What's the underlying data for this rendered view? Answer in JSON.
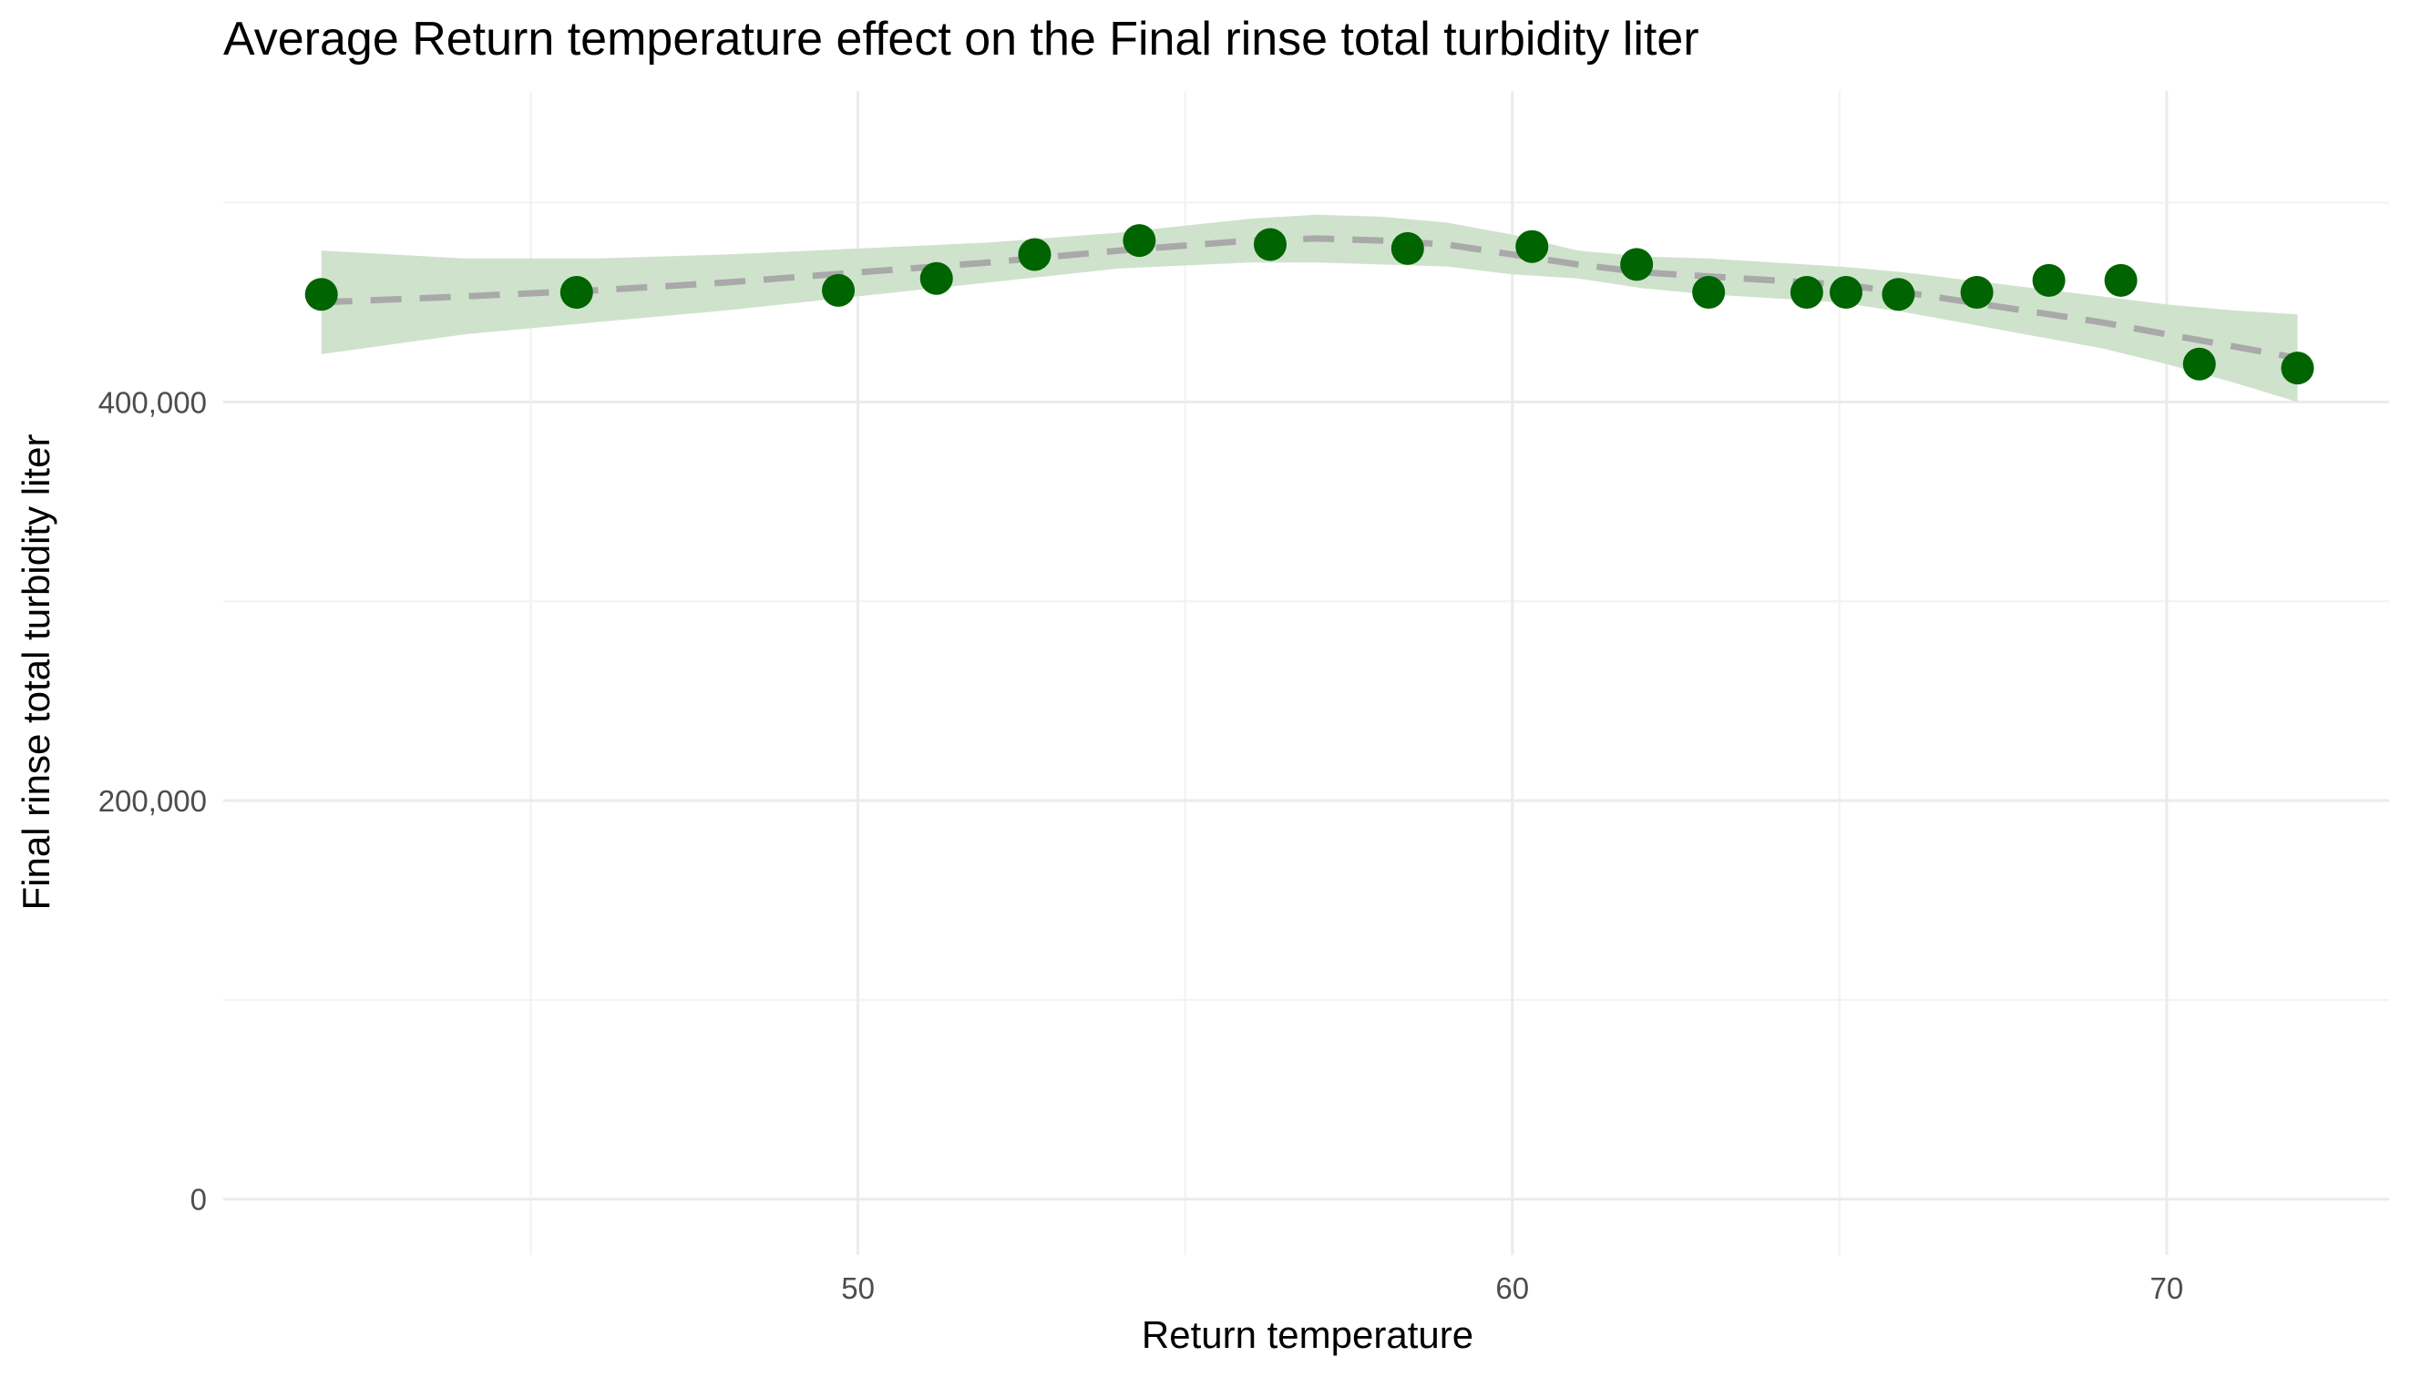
{
  "chart_data": {
    "type": "scatter",
    "title": "Average Return temperature effect on the Final rinse total turbidity liter",
    "xlabel": "Return temperature",
    "ylabel": "Final rinse total turbidity liter",
    "xlim": [
      40.3,
      73.4
    ],
    "ylim": [
      -28000,
      556000
    ],
    "x_ticks": [
      50,
      60,
      70
    ],
    "x_tick_labels": [
      "50",
      "60",
      "70"
    ],
    "y_ticks": [
      0,
      200000,
      400000
    ],
    "y_tick_labels": [
      "0",
      "200,000",
      "400,000"
    ],
    "grid": true,
    "legend": "none",
    "colors": {
      "points": "#006400",
      "trend_line": "#a9a9a9",
      "ribbon": "#cfe3cc",
      "grid_major": "#ebebeb",
      "grid_minor": "#f2f2f2"
    },
    "series": [
      {
        "type": "scatter",
        "x": [
          41.8,
          45.7,
          49.7,
          51.2,
          52.7,
          54.3,
          56.3,
          58.4,
          60.3,
          61.9,
          63.0,
          64.5,
          65.1,
          65.9,
          67.1,
          68.2,
          69.3,
          70.5,
          72.0
        ],
        "y": [
          454000,
          455000,
          456000,
          462000,
          474000,
          481000,
          479000,
          477000,
          478000,
          469000,
          455000,
          455000,
          455000,
          454000,
          455000,
          461000,
          461000,
          419000,
          417000
        ]
      },
      {
        "type": "line",
        "style": "dashed",
        "x": [
          41.8,
          44,
          46,
          48,
          50,
          52,
          54,
          56,
          57,
          58,
          59,
          60,
          61,
          62,
          63,
          64,
          65,
          66,
          67,
          68,
          69,
          70,
          71,
          72
        ],
        "y": [
          450000,
          453000,
          456000,
          460000,
          465000,
          470000,
          476000,
          481000,
          482000,
          481000,
          479000,
          474000,
          469000,
          465000,
          463000,
          461000,
          459000,
          455000,
          450000,
          445000,
          440000,
          434000,
          428000,
          422000
        ]
      },
      {
        "type": "area",
        "name_hidden": true,
        "x": [
          41.8,
          44,
          46,
          48,
          50,
          52,
          54,
          56,
          57,
          58,
          59,
          60,
          61,
          62,
          63,
          64,
          65,
          66,
          67,
          68,
          69,
          70,
          71,
          72
        ],
        "y_upper": [
          476000,
          472000,
          472000,
          474000,
          477000,
          480000,
          485000,
          492000,
          494000,
          493000,
          490000,
          484000,
          476000,
          473000,
          472000,
          470000,
          468000,
          465000,
          461000,
          457000,
          453000,
          449000,
          446000,
          444000
        ],
        "y_lower": [
          424000,
          434000,
          440000,
          446000,
          453000,
          460000,
          467000,
          470000,
          470000,
          469000,
          468000,
          464000,
          462000,
          457000,
          454000,
          452000,
          450000,
          445000,
          439000,
          433000,
          427000,
          419000,
          410000,
          400000
        ]
      }
    ]
  }
}
